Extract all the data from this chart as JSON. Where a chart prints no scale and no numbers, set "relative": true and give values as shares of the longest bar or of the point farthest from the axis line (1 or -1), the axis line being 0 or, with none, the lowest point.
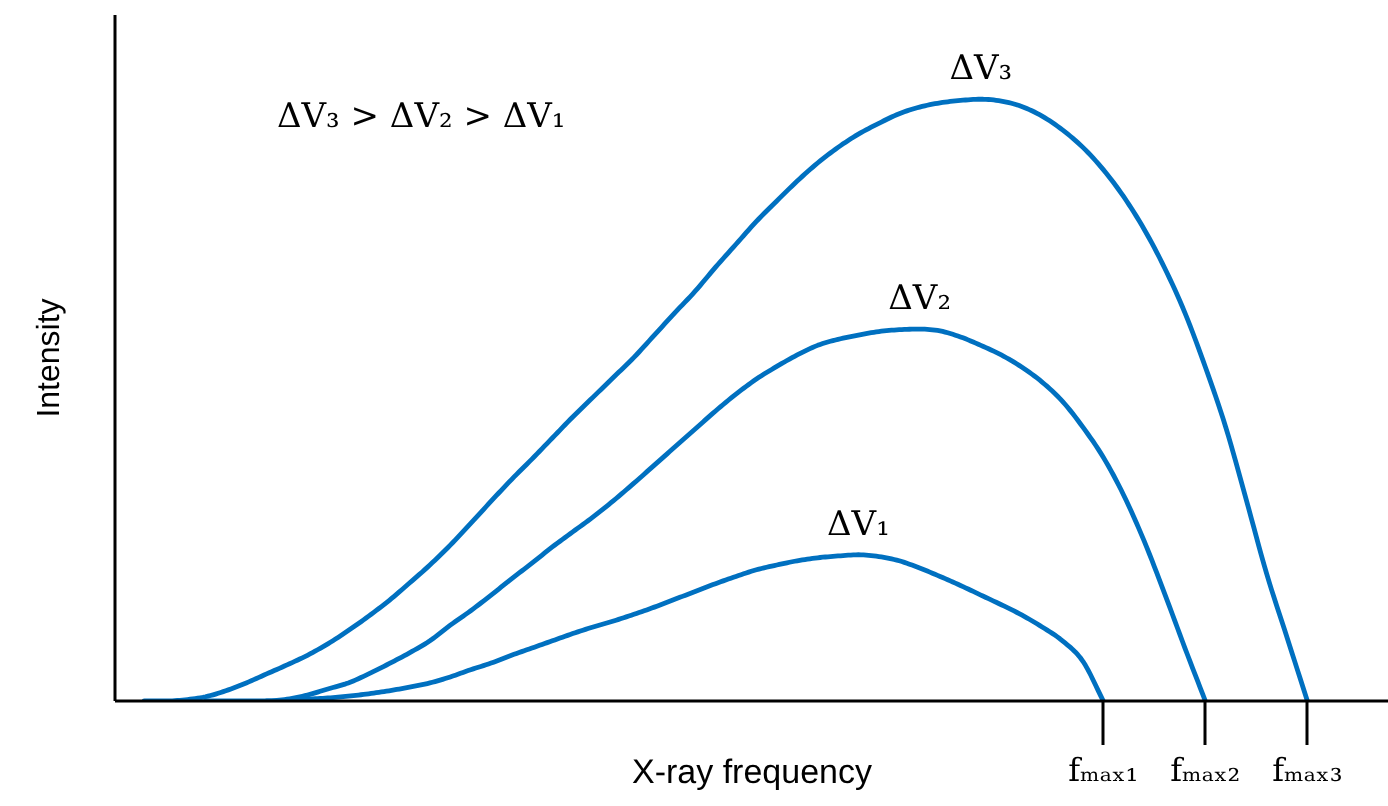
{
  "chart_data": {
    "type": "line",
    "xlabel": "X-ray frequency",
    "ylabel": "Intensity",
    "annotations": [
      "ΔV₃ > ΔV₂ > ΔV₁"
    ],
    "relative": true,
    "grid": false,
    "tick_labels": "x",
    "line_style": "solid",
    "categories": [
      null,
      null,
      null,
      null,
      null,
      null,
      null,
      null,
      null,
      null,
      null,
      null,
      null,
      null,
      null,
      null,
      null,
      null,
      null,
      null,
      null,
      null,
      null,
      null,
      null,
      null,
      null,
      null,
      null,
      null,
      null,
      null,
      null,
      null,
      null,
      null,
      null,
      null,
      null,
      null,
      null,
      null,
      null,
      null,
      null,
      null,
      null,
      "fₘₐₓ₁",
      null,
      null,
      null,
      null,
      "fₘₐₓ₂",
      null,
      null,
      null,
      null,
      "fₘₐₓ₃"
    ],
    "series": [
      {
        "name": "ΔV₁",
        "color": "#0070c0",
        "values": [
          null,
          null,
          null,
          null,
          null,
          null,
          0,
          0,
          0.003,
          0.005,
          0.008,
          0.012,
          0.017,
          0.023,
          0.03,
          0.04,
          0.052,
          0.063,
          0.076,
          0.088,
          0.1,
          0.112,
          0.123,
          0.133,
          0.144,
          0.156,
          0.169,
          0.182,
          0.195,
          0.207,
          0.218,
          0.226,
          0.233,
          0.238,
          0.241,
          0.243,
          0.24,
          0.233,
          0.221,
          0.207,
          0.192,
          0.176,
          0.16,
          0.143,
          0.123,
          0.1,
          0.066,
          0,
          null,
          null,
          null,
          null,
          null,
          null,
          null,
          null,
          null,
          null
        ]
      },
      {
        "name": "ΔV₂",
        "color": "#0070c0",
        "values": [
          null,
          null,
          null,
          0,
          0,
          0,
          0,
          0.003,
          0.01,
          0.02,
          0.03,
          0.045,
          0.062,
          0.08,
          0.1,
          0.126,
          0.15,
          0.176,
          0.203,
          0.229,
          0.256,
          0.281,
          0.306,
          0.333,
          0.362,
          0.392,
          0.422,
          0.452,
          0.482,
          0.51,
          0.535,
          0.556,
          0.575,
          0.591,
          0.601,
          0.608,
          0.614,
          0.617,
          0.618,
          0.615,
          0.605,
          0.591,
          0.575,
          0.555,
          0.53,
          0.498,
          0.455,
          0.405,
          0.342,
          0.266,
          0.179,
          0.088,
          0,
          null,
          null,
          null,
          null,
          null
        ]
      },
      {
        "name": "ΔV₃",
        "color": "#0070c0",
        "values": [
          0,
          0,
          0.002,
          0.007,
          0.017,
          0.03,
          0.045,
          0.06,
          0.076,
          0.095,
          0.117,
          0.141,
          0.167,
          0.196,
          0.226,
          0.259,
          0.295,
          0.332,
          0.368,
          0.402,
          0.437,
          0.472,
          0.505,
          0.538,
          0.571,
          0.608,
          0.645,
          0.681,
          0.721,
          0.759,
          0.797,
          0.831,
          0.864,
          0.894,
          0.92,
          0.942,
          0.96,
          0.976,
          0.987,
          0.994,
          0.998,
          1,
          0.997,
          0.988,
          0.972,
          0.949,
          0.92,
          0.883,
          0.838,
          0.784,
          0.72,
          0.645,
          0.555,
          0.455,
          0.335,
          0.212,
          0.106,
          0
        ]
      }
    ]
  }
}
